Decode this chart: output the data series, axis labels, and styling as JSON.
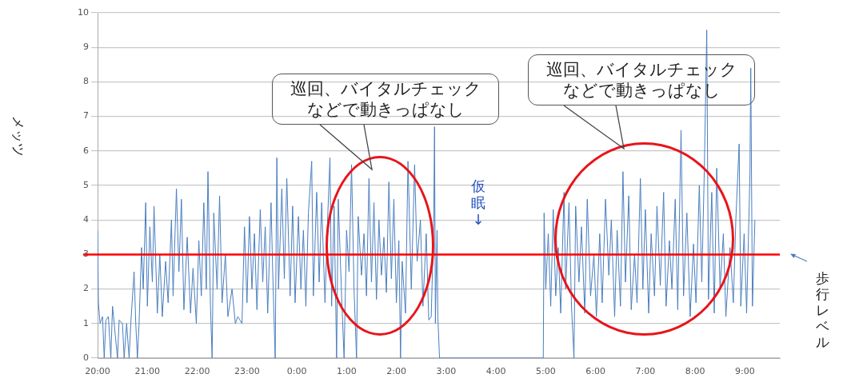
{
  "chart_data": {
    "type": "line",
    "ylabel": "メッツ",
    "annotations": [
      "巡回、バイタルチェックなどで動きっぱなし",
      "巡回、バイタルチェックなどで動きっぱなし",
      "仮眠↓"
    ],
    "xlim": [
      "--01-01T20:00",
      "--01-02T09:42"
    ],
    "ylim": [
      0,
      10
    ],
    "yticks": [
      0,
      1,
      2,
      3,
      4,
      5,
      6,
      7,
      8,
      9,
      10
    ],
    "xticks": [
      {
        "value": "--01-01T20:00",
        "label": "20:00"
      },
      {
        "value": "--01-01T21:00",
        "label": "21:00"
      },
      {
        "value": "--01-01T22:00",
        "label": "22:00"
      },
      {
        "value": "--01-01T23:00",
        "label": "23:00"
      },
      {
        "value": "--01-02T00:00",
        "label": "0:00"
      },
      {
        "value": "--01-02T01:00",
        "label": "1:00"
      },
      {
        "value": "--01-02T02:00",
        "label": "2:00"
      },
      {
        "value": "--01-02T03:00",
        "label": "3:00"
      },
      {
        "value": "--01-02T04:00",
        "label": "4:00"
      },
      {
        "value": "--01-02T05:00",
        "label": "5:00"
      },
      {
        "value": "--01-02T06:00",
        "label": "6:00"
      },
      {
        "value": "--01-02T07:00",
        "label": "7:00"
      },
      {
        "value": "--01-02T08:00",
        "label": "8:00"
      },
      {
        "value": "--01-02T09:00",
        "label": "9:00"
      }
    ],
    "grid": "y",
    "marker": "none",
    "line_style": "solid",
    "ref_lines": [
      {
        "axis": "y",
        "value": 3,
        "label": "歩行レベル",
        "color": "#ff0000"
      }
    ],
    "series": [
      {
        "color": "#4a7ebf",
        "x": [
          "--01-01T20:00",
          "--01-01T20:01",
          "--01-01T20:03",
          "--01-01T20:06",
          "--01-01T20:08",
          "--01-01T20:10",
          "--01-01T20:13",
          "--01-01T20:16",
          "--01-01T20:18",
          "--01-01T20:20",
          "--01-01T20:24",
          "--01-01T20:26",
          "--01-01T20:30",
          "--01-01T20:32",
          "--01-01T20:35",
          "--01-01T20:38",
          "--01-01T20:40",
          "--01-01T20:44",
          "--01-01T20:46",
          "--01-01T20:48",
          "--01-01T20:50",
          "--01-01T20:53",
          "--01-01T20:55",
          "--01-01T20:58",
          "--01-01T21:00",
          "--01-01T21:03",
          "--01-01T21:06",
          "--01-01T21:08",
          "--01-01T21:12",
          "--01-01T21:15",
          "--01-01T21:18",
          "--01-01T21:22",
          "--01-01T21:25",
          "--01-01T21:29",
          "--01-01T21:31",
          "--01-01T21:35",
          "--01-01T21:38",
          "--01-01T21:41",
          "--01-01T21:44",
          "--01-01T21:48",
          "--01-01T21:52",
          "--01-01T21:55",
          "--01-01T21:59",
          "--01-01T22:02",
          "--01-01T22:05",
          "--01-01T22:08",
          "--01-01T22:11",
          "--01-01T22:13",
          "--01-01T22:16",
          "--01-01T22:18",
          "--01-01T22:20",
          "--01-01T22:24",
          "--01-01T22:27",
          "--01-01T22:30",
          "--01-01T22:34",
          "--01-01T22:37",
          "--01-01T22:42",
          "--01-01T22:46",
          "--01-01T22:49",
          "--01-01T22:54",
          "--01-01T22:57",
          "--01-01T23:00",
          "--01-01T23:03",
          "--01-01T23:06",
          "--01-01T23:09",
          "--01-01T23:12",
          "--01-01T23:16",
          "--01-01T23:19",
          "--01-01T23:22",
          "--01-01T23:25",
          "--01-01T23:29",
          "--01-01T23:31",
          "--01-01T23:34",
          "--01-01T23:36",
          "--01-01T23:38",
          "--01-01T23:42",
          "--01-01T23:45",
          "--01-01T23:48",
          "--01-01T23:52",
          "--01-01T23:55",
          "--01-01T23:58",
          "--01-02T00:02",
          "--01-02T00:05",
          "--01-02T00:08",
          "--01-02T00:11",
          "--01-02T00:14",
          "--01-02T00:18",
          "--01-02T00:20",
          "--01-02T00:24",
          "--01-02T00:27",
          "--01-02T00:30",
          "--01-02T00:34",
          "--01-02T00:37",
          "--01-02T00:40",
          "--01-02T00:42",
          "--01-02T00:45",
          "--01-02T00:48",
          "--01-02T00:50",
          "--01-02T00:54",
          "--01-02T00:57",
          "--01-02T01:00",
          "--01-02T01:03",
          "--01-02T01:06",
          "--01-02T01:09",
          "--01-02T01:12",
          "--01-02T01:14",
          "--01-02T01:18",
          "--01-02T01:21",
          "--01-02T01:24",
          "--01-02T01:27",
          "--01-02T01:30",
          "--01-02T01:33",
          "--01-02T01:36",
          "--01-02T01:39",
          "--01-02T01:42",
          "--01-02T01:45",
          "--01-02T01:48",
          "--01-02T01:51",
          "--01-02T01:54",
          "--01-02T01:57",
          "--01-02T02:00",
          "--01-02T02:03",
          "--01-02T02:05",
          "--01-02T02:07",
          "--01-02T02:11",
          "--01-02T02:14",
          "--01-02T02:18",
          "--01-02T02:22",
          "--01-02T02:25",
          "--01-02T02:29",
          "--01-02T02:32",
          "--01-02T02:36",
          "--01-02T02:39",
          "--01-02T02:42",
          "--01-02T02:45",
          "--01-02T02:46",
          "--01-02T02:47",
          "--01-02T02:49",
          "--01-02T02:50",
          "--01-02T02:52",
          "--01-02T04:57",
          "--01-02T04:58",
          "--01-02T05:00",
          "--01-02T05:03",
          "--01-02T05:06",
          "--01-02T05:09",
          "--01-02T05:12",
          "--01-02T05:15",
          "--01-02T05:18",
          "--01-02T05:22",
          "--01-02T05:24",
          "--01-02T05:28",
          "--01-02T05:31",
          "--01-02T05:34",
          "--01-02T05:36",
          "--01-02T05:40",
          "--01-02T05:43",
          "--01-02T05:47",
          "--01-02T05:50",
          "--01-02T05:54",
          "--01-02T05:58",
          "--01-02T06:01",
          "--01-02T06:05",
          "--01-02T06:08",
          "--01-02T06:12",
          "--01-02T06:16",
          "--01-02T06:19",
          "--01-02T06:23",
          "--01-02T06:26",
          "--01-02T06:30",
          "--01-02T06:33",
          "--01-02T06:36",
          "--01-02T06:40",
          "--01-02T06:43",
          "--01-02T06:47",
          "--01-02T06:50",
          "--01-02T06:54",
          "--01-02T06:57",
          "--01-02T07:00",
          "--01-02T07:04",
          "--01-02T07:07",
          "--01-02T07:11",
          "--01-02T07:14",
          "--01-02T07:18",
          "--01-02T07:22",
          "--01-02T07:25",
          "--01-02T07:29",
          "--01-02T07:32",
          "--01-02T07:36",
          "--01-02T07:39",
          "--01-02T07:43",
          "--01-02T07:46",
          "--01-02T07:50",
          "--01-02T07:54",
          "--01-02T07:58",
          "--01-02T08:01",
          "--01-02T08:05",
          "--01-02T08:08",
          "--01-02T08:11",
          "--01-02T08:14",
          "--01-02T08:16",
          "--01-02T08:20",
          "--01-02T08:23",
          "--01-02T08:26",
          "--01-02T08:30",
          "--01-02T08:34",
          "--01-02T08:37",
          "--01-02T08:42",
          "--01-02T08:46",
          "--01-02T08:49",
          "--01-02T08:53",
          "--01-02T08:55",
          "--01-02T08:59",
          "--01-02T09:02",
          "--01-02T09:06",
          "--01-02T09:07",
          "--01-02T09:09",
          "--01-02T09:12"
        ],
        "values": [
          3.7,
          1.6,
          1.0,
          1.2,
          0,
          1.1,
          1.2,
          0,
          1.5,
          1.0,
          0,
          1.1,
          1.0,
          0,
          1.0,
          0,
          1.0,
          2.5,
          1.0,
          0,
          1.0,
          3.2,
          2.0,
          4.5,
          1.5,
          3.8,
          2.2,
          4.4,
          1.3,
          3.0,
          1.2,
          2.8,
          1.6,
          4.0,
          1.8,
          4.9,
          2.5,
          4.6,
          1.4,
          3.5,
          1.3,
          2.6,
          1.0,
          3.4,
          1.8,
          4.5,
          2.0,
          5.4,
          1.5,
          0,
          4.2,
          2.0,
          4.7,
          1.6,
          3.0,
          1.2,
          2.0,
          1.0,
          1.2,
          1.0,
          3.8,
          1.6,
          4.1,
          2.0,
          3.6,
          1.4,
          4.3,
          2.2,
          3.8,
          1.3,
          4.5,
          2.5,
          0,
          5.8,
          2.0,
          4.9,
          2.3,
          5.2,
          1.8,
          4.4,
          1.6,
          4.1,
          2.0,
          3.7,
          1.5,
          4.2,
          5.7,
          1.8,
          4.8,
          2.2,
          4.5,
          1.6,
          3.9,
          5.8,
          1.5,
          4.4,
          0,
          4.6,
          1.8,
          0,
          3.7,
          2.5,
          5.6,
          2.0,
          0,
          4.1,
          2.4,
          3.6,
          1.8,
          5.2,
          2.2,
          4.5,
          1.7,
          4.0,
          2.4,
          3.5,
          1.9,
          5.1,
          2.3,
          4.6,
          1.6,
          3.4,
          0,
          2.8,
          1.3,
          5.7,
          2.0,
          5.6,
          2.8,
          4.0,
          1.5,
          3.6,
          1.1,
          1.2,
          3.9,
          6.7,
          1.0,
          3.7,
          1.2,
          0,
          0,
          4.2,
          2.0,
          3.6,
          1.5,
          4.3,
          1.8,
          3.2,
          1.3,
          4.8,
          2.0,
          4.5,
          1.5,
          0,
          4.4,
          2.2,
          3.8,
          1.3,
          4.6,
          1.8,
          3.0,
          1.2,
          3.6,
          1.6,
          4.6,
          2.4,
          4.0,
          1.2,
          3.7,
          1.5,
          5.4,
          2.2,
          4.7,
          1.4,
          3.0,
          1.6,
          5.2,
          2.0,
          4.3,
          1.3,
          3.6,
          1.8,
          4.4,
          2.1,
          4.8,
          1.5,
          3.4,
          2.0,
          4.6,
          1.4,
          6.6,
          1.8,
          4.2,
          1.2,
          3.3,
          1.6,
          5.0,
          2.2,
          5.4,
          9.5,
          1.7,
          4.8,
          1.3,
          5.5,
          2.0,
          3.6,
          1.2,
          3.2,
          1.6,
          4.0,
          6.2,
          1.5,
          3.6,
          1.3,
          5.3,
          8.4,
          1.5,
          4.0
        ]
      }
    ]
  }
}
